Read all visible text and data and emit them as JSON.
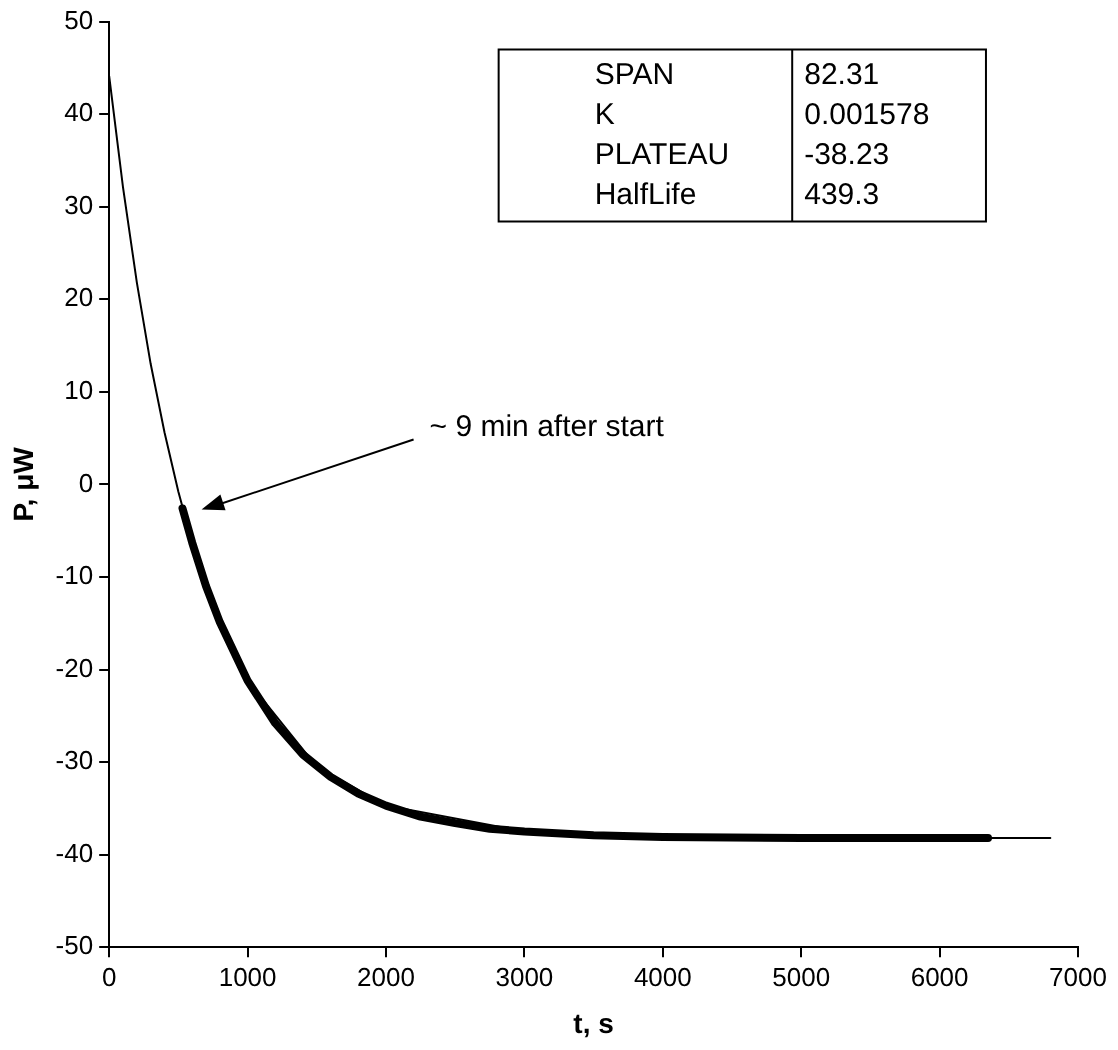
{
  "chart_data": {
    "type": "line",
    "xlabel": "t, s",
    "ylabel": "P, μW",
    "xlim": [
      0,
      7000
    ],
    "xticks": [
      0,
      1000,
      2000,
      3000,
      4000,
      5000,
      6000,
      7000
    ],
    "ylim": [
      -50,
      50
    ],
    "yticks": [
      -50,
      -40,
      -30,
      -20,
      -10,
      0,
      10,
      20,
      30,
      40,
      50
    ],
    "grid": false,
    "legend": false,
    "marker": "none",
    "line_style": "solid",
    "series": [
      {
        "color": "#000000",
        "x": [
          0,
          100,
          200,
          300,
          400,
          500,
          600,
          800,
          1000,
          1500,
          2000,
          3000,
          4000,
          5000,
          6000,
          6800
        ],
        "values": [
          44.1,
          32.1,
          21.8,
          13.0,
          5.6,
          -0.8,
          -6.3,
          -14.9,
          -21.2,
          -30.5,
          -34.7,
          -37.5,
          -38.1,
          -38.2,
          -38.2,
          -38.2
        ]
      },
      {
        "color": "#000000",
        "x": [
          530,
          600,
          700,
          800,
          1000,
          1200,
          1400,
          1600,
          1800,
          2000,
          2250,
          2500,
          2750,
          3000,
          3500,
          4000,
          5000,
          6350
        ],
        "values": [
          -2.6,
          -6.3,
          -11.0,
          -14.9,
          -21.2,
          -25.8,
          -29.2,
          -31.6,
          -33.4,
          -34.7,
          -35.9,
          -36.6,
          -37.2,
          -37.5,
          -37.9,
          -38.1,
          -38.2,
          -38.2
        ]
      }
    ],
    "annotations": [
      "SPAN",
      "82.31",
      "K",
      "0.001578",
      "PLATEAU",
      "-38.23",
      "HalfLife",
      "439.3",
      "~ 9 min after start"
    ]
  }
}
